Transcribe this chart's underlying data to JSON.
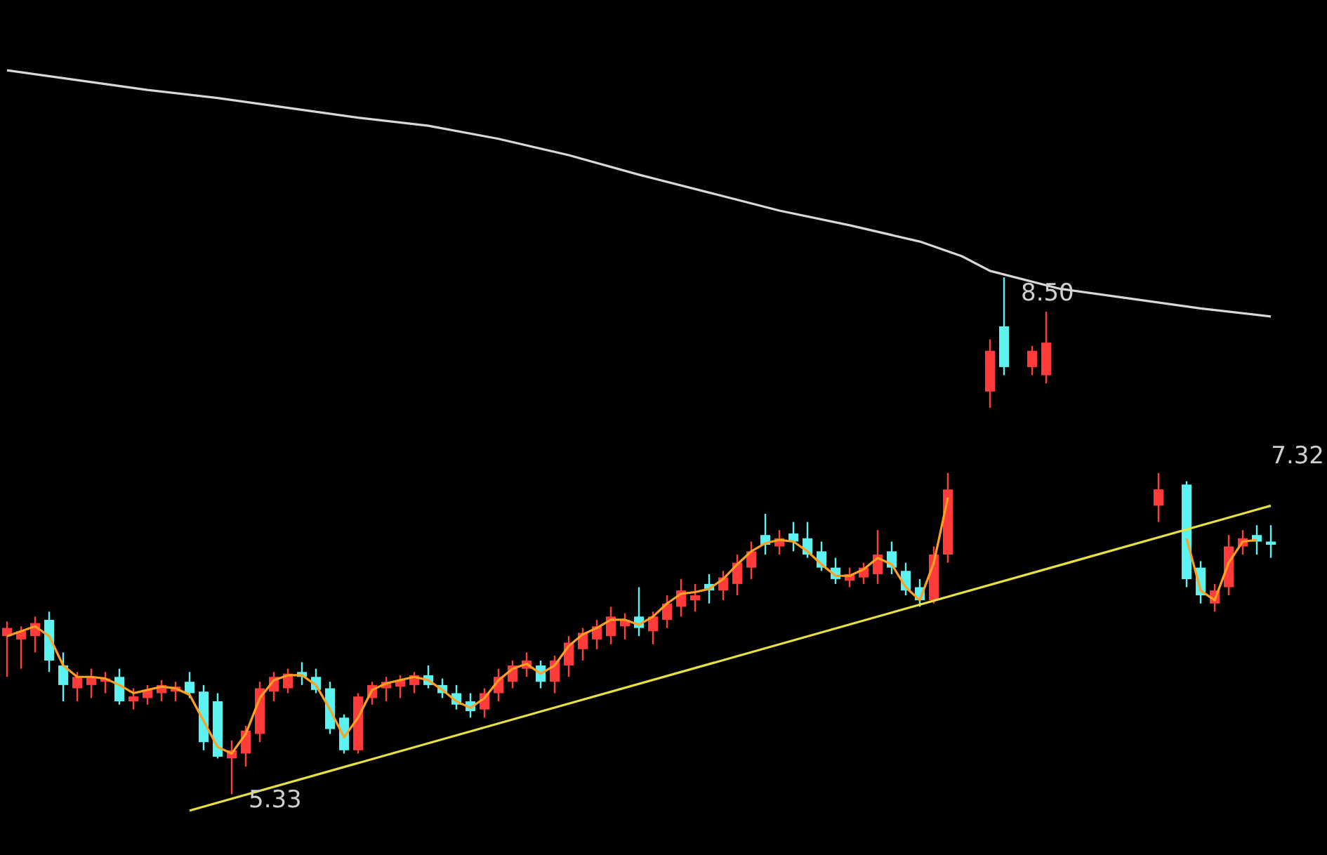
{
  "chart_data": {
    "type": "candlestick",
    "relative": false,
    "categories": [
      null,
      null,
      null,
      null,
      null,
      null,
      null,
      null,
      null,
      null,
      null,
      null,
      null,
      null,
      null,
      null,
      null,
      null,
      null,
      null,
      null,
      null,
      null,
      null,
      null,
      null,
      null,
      null,
      null,
      null,
      null,
      null,
      null,
      null,
      null,
      null,
      null,
      null,
      null,
      null,
      null,
      null,
      null,
      null,
      null,
      null,
      null,
      null,
      null,
      null,
      null,
      null,
      null,
      null,
      null,
      null,
      null,
      null,
      null,
      null,
      null,
      null,
      null,
      null,
      null,
      null,
      null,
      null,
      null,
      null,
      null,
      null,
      null,
      null,
      null,
      null,
      null,
      null,
      null,
      null,
      null,
      null,
      null,
      null,
      null,
      null,
      null,
      null,
      null,
      null,
      null
    ],
    "ohlc": [
      [
        6.3,
        6.39,
        6.05,
        6.35
      ],
      [
        6.28,
        6.36,
        6.1,
        6.33
      ],
      [
        6.3,
        6.42,
        6.2,
        6.38
      ],
      [
        6.4,
        6.45,
        6.08,
        6.15
      ],
      [
        6.12,
        6.2,
        5.9,
        6.0
      ],
      [
        5.98,
        6.08,
        5.9,
        6.05
      ],
      [
        6.0,
        6.1,
        5.92,
        6.05
      ],
      [
        6.02,
        6.08,
        5.95,
        6.04
      ],
      [
        6.05,
        6.1,
        5.88,
        5.9
      ],
      [
        5.9,
        5.98,
        5.85,
        5.93
      ],
      [
        5.92,
        6.0,
        5.88,
        5.97
      ],
      [
        5.95,
        6.03,
        5.9,
        6.0
      ],
      [
        5.96,
        6.02,
        5.9,
        5.99
      ],
      [
        6.02,
        6.08,
        5.92,
        5.95
      ],
      [
        5.96,
        6.0,
        5.6,
        5.65
      ],
      [
        5.9,
        5.95,
        5.55,
        5.56
      ],
      [
        5.55,
        5.66,
        5.33,
        5.6
      ],
      [
        5.58,
        5.75,
        5.5,
        5.72
      ],
      [
        5.7,
        6.02,
        5.65,
        5.98
      ],
      [
        5.96,
        6.08,
        5.9,
        6.05
      ],
      [
        5.98,
        6.1,
        5.95,
        6.07
      ],
      [
        6.08,
        6.14,
        6.0,
        6.05
      ],
      [
        6.05,
        6.1,
        5.95,
        5.97
      ],
      [
        5.98,
        6.02,
        5.7,
        5.73
      ],
      [
        5.8,
        5.82,
        5.58,
        5.6
      ],
      [
        5.6,
        5.95,
        5.58,
        5.93
      ],
      [
        5.92,
        6.02,
        5.88,
        6.0
      ],
      [
        5.98,
        6.05,
        5.9,
        6.02
      ],
      [
        5.99,
        6.06,
        5.92,
        6.03
      ],
      [
        6.0,
        6.08,
        5.95,
        6.06
      ],
      [
        6.06,
        6.12,
        5.98,
        6.0
      ],
      [
        6.0,
        6.04,
        5.92,
        5.95
      ],
      [
        5.95,
        6.0,
        5.85,
        5.88
      ],
      [
        5.9,
        5.95,
        5.8,
        5.84
      ],
      [
        5.85,
        5.98,
        5.8,
        5.95
      ],
      [
        5.95,
        6.1,
        5.9,
        6.05
      ],
      [
        6.02,
        6.15,
        5.98,
        6.12
      ],
      [
        6.1,
        6.2,
        6.05,
        6.15
      ],
      [
        6.12,
        6.15,
        5.98,
        6.02
      ],
      [
        6.02,
        6.18,
        5.95,
        6.15
      ],
      [
        6.12,
        6.3,
        6.05,
        6.26
      ],
      [
        6.22,
        6.35,
        6.15,
        6.32
      ],
      [
        6.28,
        6.4,
        6.22,
        6.36
      ],
      [
        6.3,
        6.48,
        6.25,
        6.42
      ],
      [
        6.36,
        6.44,
        6.28,
        6.4
      ],
      [
        6.42,
        6.6,
        6.3,
        6.35
      ],
      [
        6.33,
        6.45,
        6.25,
        6.42
      ],
      [
        6.4,
        6.55,
        6.35,
        6.5
      ],
      [
        6.48,
        6.65,
        6.42,
        6.58
      ],
      [
        6.52,
        6.62,
        6.45,
        6.55
      ],
      [
        6.62,
        6.68,
        6.5,
        6.58
      ],
      [
        6.58,
        6.7,
        6.52,
        6.66
      ],
      [
        6.62,
        6.8,
        6.55,
        6.75
      ],
      [
        6.72,
        6.88,
        6.65,
        6.82
      ],
      [
        6.92,
        7.05,
        6.8,
        6.86
      ],
      [
        6.85,
        6.95,
        6.8,
        6.9
      ],
      [
        6.93,
        7.0,
        6.82,
        6.88
      ],
      [
        6.9,
        7.0,
        6.78,
        6.8
      ],
      [
        6.82,
        6.88,
        6.7,
        6.72
      ],
      [
        6.72,
        6.78,
        6.62,
        6.65
      ],
      [
        6.64,
        6.72,
        6.6,
        6.68
      ],
      [
        6.66,
        6.75,
        6.62,
        6.72
      ],
      [
        6.68,
        6.95,
        6.62,
        6.8
      ],
      [
        6.82,
        6.88,
        6.68,
        6.72
      ],
      [
        6.7,
        6.75,
        6.55,
        6.58
      ],
      [
        6.6,
        6.65,
        6.48,
        6.52
      ],
      [
        6.52,
        6.85,
        6.5,
        6.8
      ],
      [
        6.8,
        7.3,
        6.75,
        7.2
      ],
      null,
      null,
      [
        7.8,
        8.12,
        7.7,
        8.05
      ],
      [
        8.2,
        8.5,
        7.9,
        7.95
      ],
      null,
      [
        7.95,
        8.08,
        7.9,
        8.05
      ],
      [
        7.9,
        8.29,
        7.85,
        8.1
      ],
      null,
      null,
      null,
      null,
      null,
      null,
      null,
      [
        7.1,
        7.3,
        7.0,
        7.2
      ],
      null,
      [
        7.23,
        7.25,
        6.6,
        6.65
      ],
      [
        6.72,
        6.76,
        6.5,
        6.55
      ],
      [
        6.5,
        6.62,
        6.45,
        6.58
      ],
      [
        6.6,
        6.92,
        6.55,
        6.85
      ],
      [
        6.85,
        6.95,
        6.8,
        6.9
      ],
      [
        6.92,
        6.98,
        6.8,
        6.88
      ],
      [
        6.88,
        6.98,
        6.78,
        6.86
      ]
    ],
    "colors": [
      "#ff3b3b",
      "#ff3b3b",
      "#ff3b3b",
      "#5cf2f2",
      "#5cf2f2",
      "#ff3b3b",
      "#ff3b3b",
      "#ff3b3b",
      "#5cf2f2",
      "#ff3b3b",
      "#ff3b3b",
      "#ff3b3b",
      "#ff3b3b",
      "#5cf2f2",
      "#5cf2f2",
      "#5cf2f2",
      "#ff3b3b",
      "#ff3b3b",
      "#ff3b3b",
      "#ff3b3b",
      "#ff3b3b",
      "#5cf2f2",
      "#5cf2f2",
      "#5cf2f2",
      "#5cf2f2",
      "#ff3b3b",
      "#ff3b3b",
      "#ff3b3b",
      "#ff3b3b",
      "#ff3b3b",
      "#5cf2f2",
      "#5cf2f2",
      "#5cf2f2",
      "#5cf2f2",
      "#ff3b3b",
      "#ff3b3b",
      "#ff3b3b",
      "#ff3b3b",
      "#5cf2f2",
      "#ff3b3b",
      "#ff3b3b",
      "#ff3b3b",
      "#ff3b3b",
      "#ff3b3b",
      "#ff3b3b",
      "#5cf2f2",
      "#ff3b3b",
      "#ff3b3b",
      "#ff3b3b",
      "#ff3b3b",
      "#5cf2f2",
      "#ff3b3b",
      "#ff3b3b",
      "#ff3b3b",
      "#5cf2f2",
      "#ff3b3b",
      "#5cf2f2",
      "#5cf2f2",
      "#5cf2f2",
      "#5cf2f2",
      "#ff3b3b",
      "#ff3b3b",
      "#ff3b3b",
      "#5cf2f2",
      "#5cf2f2",
      "#5cf2f2",
      "#ff3b3b",
      "#ff3b3b",
      null,
      null,
      "#ff3b3b",
      "#5cf2f2",
      null,
      "#ff3b3b",
      "#ff3b3b",
      null,
      null,
      null,
      null,
      null,
      null,
      null,
      "#ff3b3b",
      null,
      "#5cf2f2",
      "#5cf2f2",
      "#ff3b3b",
      "#ff3b3b",
      "#ff3b3b",
      "#5cf2f2",
      "#5cf2f2"
    ],
    "series": [
      {
        "type": "line",
        "color": "#d8d8d8",
        "values": [
          9.77,
          null,
          null,
          null,
          null,
          9.71,
          null,
          null,
          null,
          null,
          9.65,
          null,
          null,
          null,
          null,
          9.6,
          null,
          null,
          null,
          null,
          9.54,
          null,
          null,
          null,
          null,
          9.48,
          null,
          null,
          null,
          null,
          9.43,
          null,
          null,
          null,
          null,
          9.35,
          null,
          null,
          null,
          null,
          9.25,
          null,
          null,
          null,
          null,
          9.13,
          null,
          null,
          null,
          null,
          9.02,
          null,
          null,
          null,
          null,
          8.91,
          null,
          null,
          null,
          null,
          8.82,
          null,
          null,
          null,
          null,
          8.72,
          null,
          null,
          8.63,
          null,
          8.54,
          null,
          null,
          null,
          null,
          8.43,
          null,
          null,
          null,
          null,
          8.37,
          null,
          null,
          null,
          null,
          8.31,
          null,
          null,
          null,
          null,
          8.26
        ]
      },
      {
        "type": "line",
        "color": "#ffa020",
        "values": [
          6.3,
          6.33,
          6.36,
          6.3,
          6.12,
          6.05,
          6.05,
          6.04,
          6.0,
          5.95,
          5.97,
          5.99,
          5.98,
          5.94,
          5.78,
          5.62,
          5.58,
          5.7,
          5.92,
          6.03,
          6.06,
          6.06,
          6.0,
          5.85,
          5.68,
          5.8,
          5.97,
          6.01,
          6.03,
          6.05,
          6.03,
          5.97,
          5.9,
          5.86,
          5.92,
          6.03,
          6.1,
          6.13,
          6.07,
          6.12,
          6.24,
          6.31,
          6.35,
          6.4,
          6.4,
          6.37,
          6.42,
          6.5,
          6.56,
          6.57,
          6.59,
          6.65,
          6.74,
          6.82,
          6.87,
          6.89,
          6.88,
          6.82,
          6.74,
          6.67,
          6.67,
          6.71,
          6.78,
          6.74,
          6.6,
          6.52,
          6.75,
          7.15,
          null,
          null,
          null,
          null,
          null,
          null,
          null,
          null,
          null,
          null,
          null,
          null,
          null,
          null,
          null,
          null,
          6.9,
          6.58,
          6.52,
          6.75,
          6.88,
          6.89,
          null
        ]
      },
      {
        "type": "line",
        "color": "#e8e040",
        "values": [
          null,
          null,
          null,
          null,
          null,
          null,
          null,
          null,
          null,
          null,
          null,
          null,
          null,
          5.23,
          null,
          null,
          null,
          null,
          null,
          null,
          null,
          null,
          null,
          null,
          null,
          null,
          null,
          null,
          null,
          null,
          null,
          null,
          null,
          null,
          null,
          null,
          null,
          null,
          null,
          null,
          null,
          null,
          null,
          null,
          null,
          null,
          null,
          null,
          null,
          null,
          null,
          null,
          null,
          null,
          null,
          null,
          null,
          null,
          null,
          null,
          null,
          null,
          null,
          null,
          null,
          null,
          null,
          null,
          null,
          null,
          null,
          null,
          null,
          null,
          null,
          null,
          null,
          null,
          null,
          null,
          null,
          null,
          null,
          null,
          null,
          null,
          null,
          null,
          null,
          null,
          7.1
        ]
      }
    ],
    "annotations": [
      {
        "text": "8.50",
        "y": 8.5
      },
      {
        "text": "5.33",
        "y": 5.33
      },
      "7.32"
    ],
    "tick_labels": false
  }
}
